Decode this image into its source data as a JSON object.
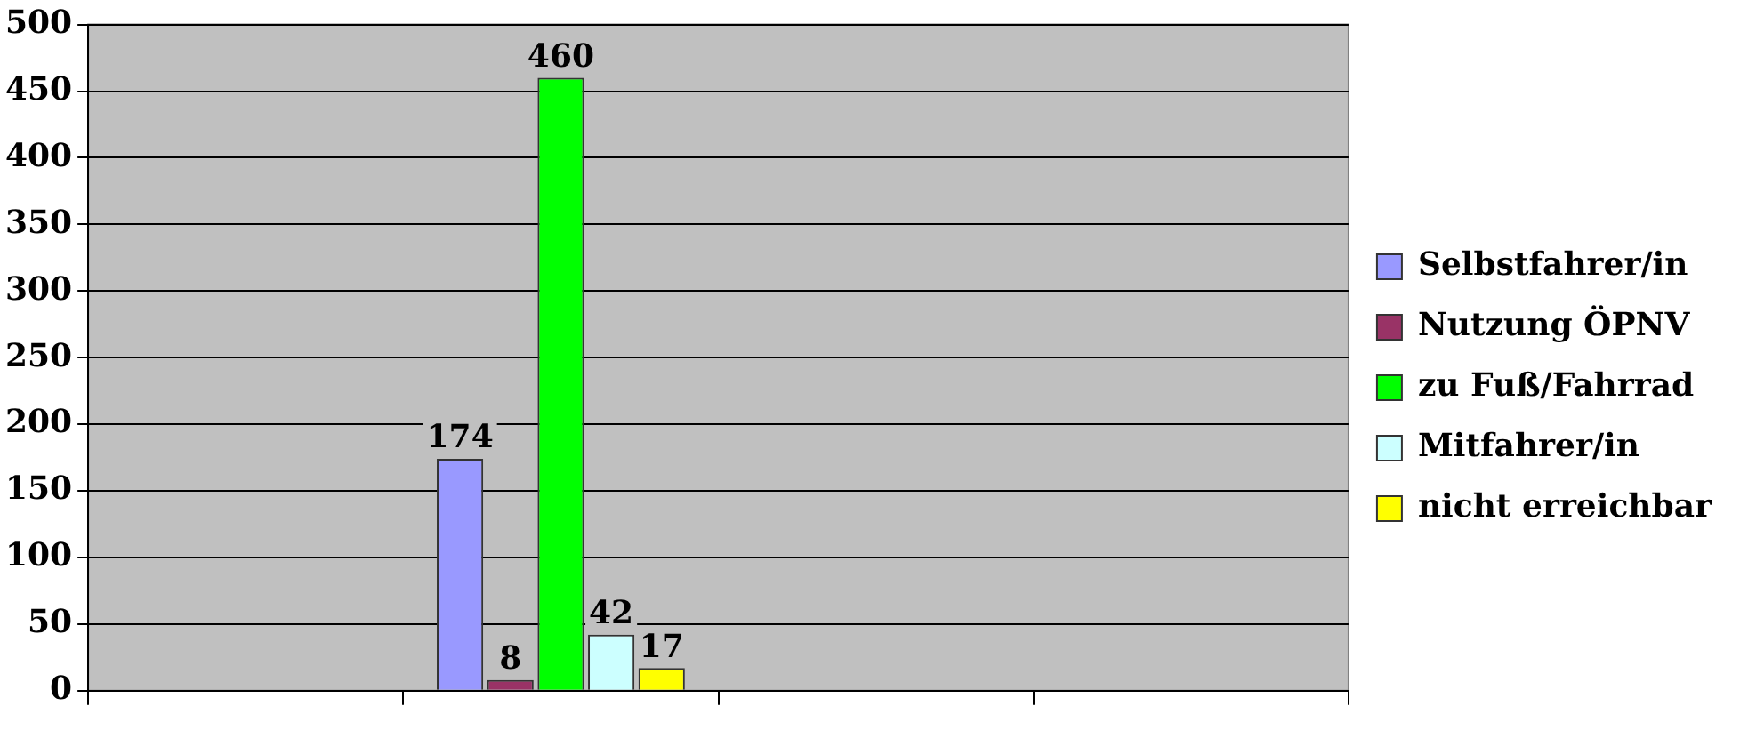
{
  "chart_data": {
    "type": "bar",
    "categories": [
      null,
      null,
      null,
      null
    ],
    "series": [
      {
        "name": "Selbstfahrer/in",
        "color": "#9999ff",
        "values": [
          null,
          174,
          null,
          null
        ]
      },
      {
        "name": "Nutzung ÖPNV",
        "color": "#993366",
        "values": [
          null,
          8,
          null,
          null
        ]
      },
      {
        "name": "zu Fuß/Fahrrad",
        "color": "#00ff00",
        "values": [
          null,
          460,
          null,
          null
        ]
      },
      {
        "name": "Mitfahrer/in",
        "color": "#ccffff",
        "values": [
          null,
          42,
          null,
          null
        ]
      },
      {
        "name": "nicht erreichbar",
        "color": "#ffff00",
        "values": [
          null,
          17,
          null,
          null
        ]
      }
    ],
    "ylim": [
      0,
      500
    ],
    "yticks": [
      0,
      50,
      100,
      150,
      200,
      250,
      300,
      350,
      400,
      450,
      500
    ],
    "grid": "y",
    "legend": "right",
    "data_labels": true
  }
}
